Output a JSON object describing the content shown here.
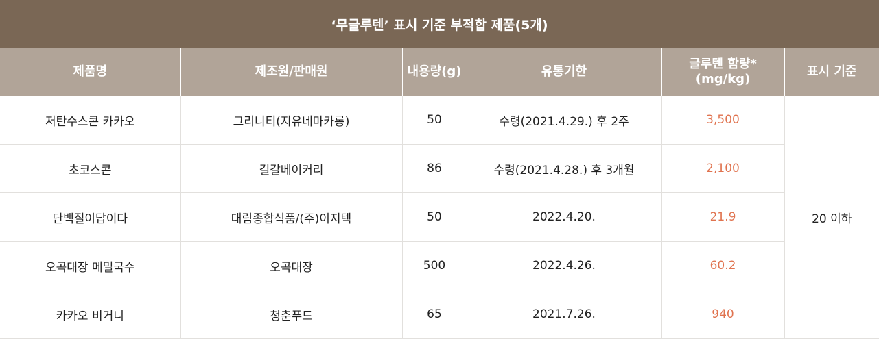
{
  "title": "‘무글루텐’ 표시 기준 부적합 제품(5개)",
  "headers": {
    "product": "제품명",
    "maker": "제조원/판매원",
    "volume": "내용량(g)",
    "expiry": "유통기한",
    "gluten_line1": "글루텐 함량*",
    "gluten_line2": "(mg/kg)",
    "standard": "표시 기준"
  },
  "rows": [
    {
      "product": "저탄수스콘 카카오",
      "maker": "그리니티(지유네마카롱)",
      "volume": "50",
      "expiry": "수령(2021.4.29.) 후 2주",
      "gluten": "3,500"
    },
    {
      "product": "초코스콘",
      "maker": "길갈베이커리",
      "volume": "86",
      "expiry": "수령(2021.4.28.) 후 3개월",
      "gluten": "2,100"
    },
    {
      "product": "단백질이답이다",
      "maker": "대림종합식품/(주)이지텍",
      "volume": "50",
      "expiry": "2022.4.20.",
      "gluten": "21.9"
    },
    {
      "product": "오곡대장 메밀국수",
      "maker": "오곡대장",
      "volume": "500",
      "expiry": "2022.4.26.",
      "gluten": "60.2"
    },
    {
      "product": "카카오 비거니",
      "maker": "청춘푸드",
      "volume": "65",
      "expiry": "2021.7.26.",
      "gluten": "940"
    }
  ],
  "standard_value": "20 이하",
  "colors": {
    "title_bg": "#7a6755",
    "header_bg": "#b1a498",
    "highlight": "#e0734f"
  }
}
